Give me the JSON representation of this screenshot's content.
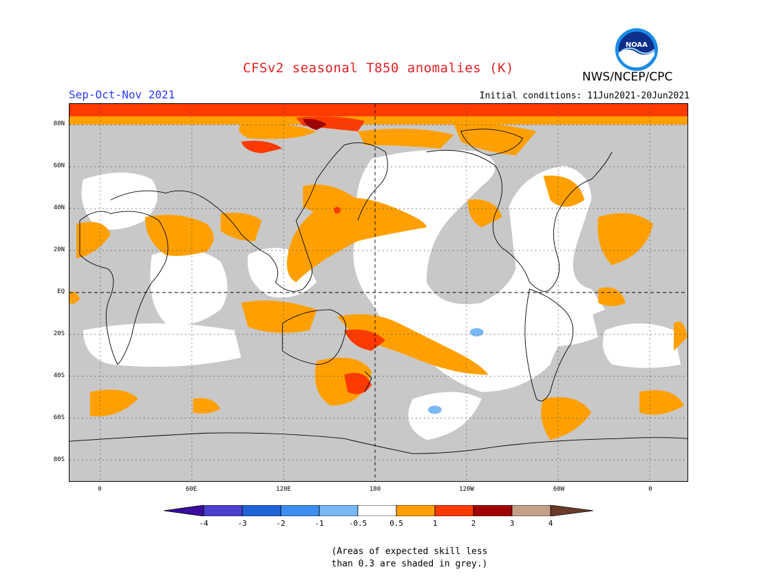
{
  "header": {
    "title": "CFSv2 seasonal T850 anomalies (K)",
    "season": "Sep-Oct-Nov 2021",
    "initial_conditions": "Initial conditions: 11Jun2021-20Jun2021",
    "agency": "NWS/NCEP/CPC",
    "logo_text": "NOAA"
  },
  "axes": {
    "lat_labels": [
      "80N",
      "60N",
      "40N",
      "20N",
      "EQ",
      "20S",
      "40S",
      "60S",
      "80S"
    ],
    "lon_labels": [
      "0",
      "60E",
      "120E",
      "180",
      "120W",
      "60W",
      "0"
    ]
  },
  "legend": {
    "tick_labels": [
      "-4",
      "-3",
      "-2",
      "-1",
      "-0.5",
      "0.5",
      "1",
      "2",
      "3",
      "4"
    ],
    "colors": [
      "#3a0ca0",
      "#4a3fcf",
      "#1f63d8",
      "#3d8ef0",
      "#7ab8f5",
      "#ffffff",
      "#ffa000",
      "#ff3a00",
      "#a00000",
      "#c8a08a",
      "#6b3a2a"
    ],
    "skill_mask_color": "#c8c8c8"
  },
  "note": {
    "line1": "(Areas of expected skill less",
    "line2": "than 0.3 are shaded in grey.)"
  }
}
